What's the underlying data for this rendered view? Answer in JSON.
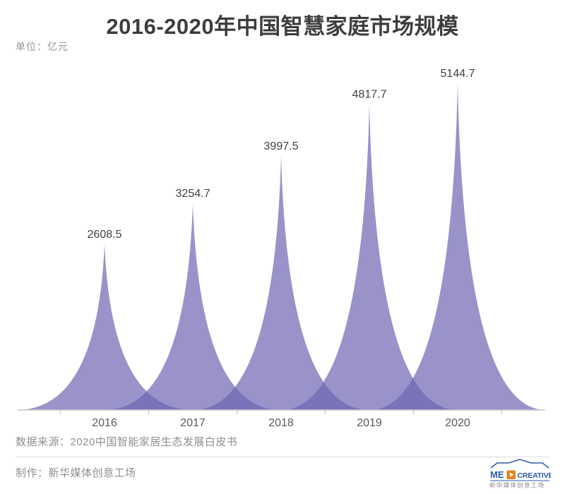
{
  "header": {
    "title": "2016-2020年中国智慧家庭市场规模",
    "unit_label": "单位：亿元"
  },
  "chart_data": {
    "type": "area",
    "variant": "peak-spike-series",
    "title": "2016-2020年中国智慧家庭市场规模",
    "unit": "亿元",
    "categories": [
      "2016",
      "2017",
      "2018",
      "2019",
      "2020"
    ],
    "values": [
      2608.5,
      3254.7,
      3997.5,
      4817.7,
      5144.7
    ],
    "value_labels": [
      "2608.5",
      "3254.7",
      "3997.5",
      "4817.7",
      "5144.7"
    ],
    "ylim": [
      0,
      5600
    ],
    "grid": false,
    "legend": "none",
    "fill_color": "#6d65b4",
    "fill_opacity": 0.7,
    "axis_color": "#c9c9c9",
    "value_label_color": "#3f3f3f",
    "axis_label_color": "#595959"
  },
  "footer": {
    "source": "数据来源：2020中国智能家居生态发展白皮书",
    "credit": "制作：新华媒体创意工场",
    "logo": {
      "text_left": "ME",
      "text_right": "CREATIVE",
      "caption": "新华媒体创意工场",
      "blue": "#2b5ca8",
      "orange": "#e8821e"
    }
  }
}
